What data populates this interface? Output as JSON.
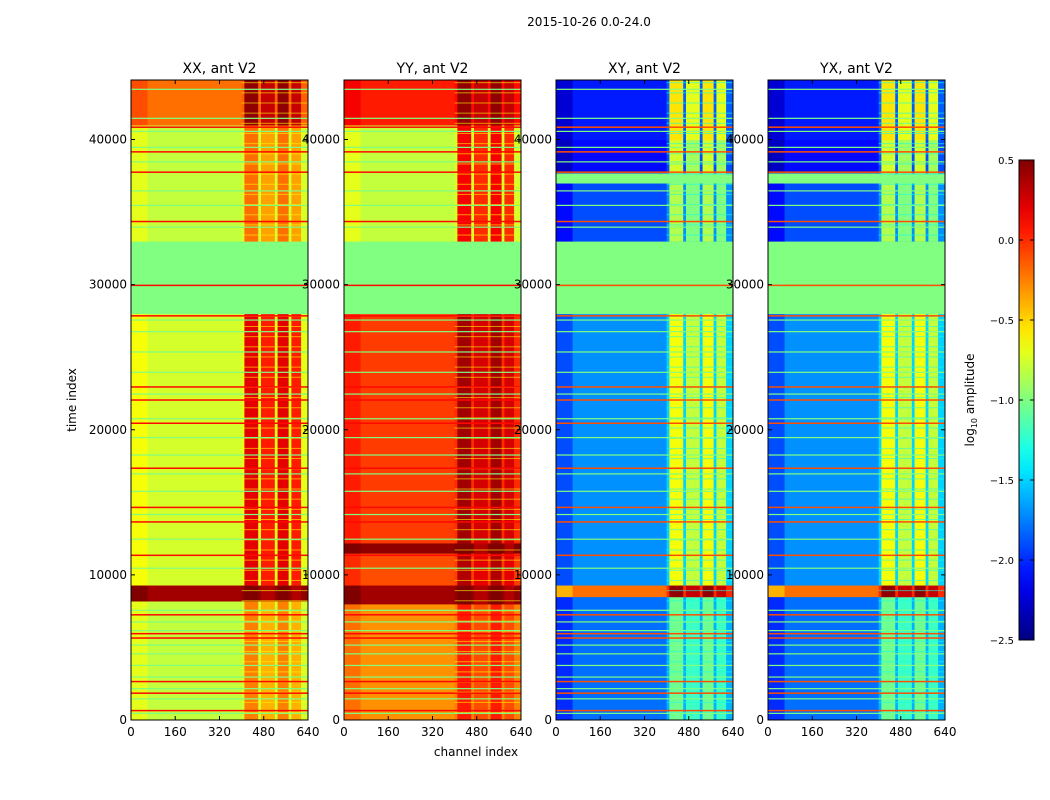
{
  "chart_data": {
    "type": "heatmap",
    "title": "2015-10-26 0.0-24.0",
    "xlabel": "channel index",
    "ylabel": "time index",
    "xlim": [
      0,
      640
    ],
    "ylim": [
      0,
      44100
    ],
    "xticks": [
      "0",
      "160",
      "320",
      "480",
      "640"
    ],
    "xtick_values": [
      0,
      160,
      320,
      480,
      640
    ],
    "yticks": [
      "0",
      "10000",
      "20000",
      "30000",
      "40000"
    ],
    "ytick_values": [
      0,
      10000,
      20000,
      30000,
      40000
    ],
    "colorbar": {
      "label_main": "log",
      "label_sub": "10",
      "label_rest": " amplitude",
      "range": [
        -2.5,
        0.5
      ],
      "colormap": "jet",
      "ticks": [
        "0.5",
        "0.0",
        "−0.5",
        "−1.0",
        "−1.5",
        "−2.0",
        "−2.5"
      ],
      "tick_values": [
        0.5,
        0.0,
        -0.5,
        -1.0,
        -1.5,
        -2.0,
        -2.5
      ]
    },
    "rfi_channel_ranges": [
      [
        410,
        460
      ],
      [
        470,
        520
      ],
      [
        530,
        570
      ],
      [
        580,
        615
      ]
    ],
    "flag_lines_green": [
      500,
      1500,
      2200,
      3000,
      3800,
      4600,
      5200,
      6200,
      6800,
      7600,
      10500,
      12500,
      14200,
      15800,
      17000,
      18300,
      19500,
      20800,
      22500,
      24000,
      25400,
      26800,
      27600,
      34000,
      35500,
      36500,
      38500,
      39500,
      40600,
      41500,
      43500
    ],
    "flag_lines_red": [
      700,
      1900,
      2700,
      5700,
      6000,
      7300,
      11400,
      13700,
      14700,
      17400,
      20500,
      22100,
      23000,
      27900,
      30000,
      34400,
      37800,
      39200,
      40900
    ],
    "panels": [
      {
        "title": "XX, ant V2",
        "bands": [
          [
            0,
            8200,
            -0.8,
            -0.3
          ],
          [
            8200,
            9300,
            0.4,
            0.45
          ],
          [
            9300,
            28000,
            -0.75,
            0.15
          ],
          [
            28000,
            33000,
            -1.0,
            -1.0
          ],
          [
            33000,
            41000,
            -0.8,
            -0.25
          ],
          [
            41000,
            44100,
            -0.2,
            0.4
          ]
        ]
      },
      {
        "title": "YY, ant V2",
        "bands": [
          [
            0,
            8000,
            -0.3,
            0.0
          ],
          [
            8000,
            9300,
            0.4,
            0.45
          ],
          [
            9300,
            11500,
            -0.1,
            0.3
          ],
          [
            11500,
            12200,
            0.45,
            0.45
          ],
          [
            12200,
            28000,
            -0.05,
            0.35
          ],
          [
            28000,
            33000,
            -1.0,
            -1.0
          ],
          [
            33000,
            41000,
            -0.8,
            0.1
          ],
          [
            41000,
            44100,
            0.05,
            0.4
          ]
        ]
      },
      {
        "title": "XY, ant V2",
        "bands": [
          [
            0,
            8500,
            -1.8,
            -1.1
          ],
          [
            8500,
            9300,
            -0.2,
            0.4
          ],
          [
            9300,
            28000,
            -1.7,
            -0.7
          ],
          [
            28000,
            33000,
            -1.0,
            -1.0
          ],
          [
            33000,
            37000,
            -1.9,
            -0.9
          ],
          [
            37000,
            37700,
            -1.0,
            -1.0
          ],
          [
            37700,
            40000,
            -2.1,
            -0.8
          ],
          [
            40000,
            44100,
            -2.05,
            -0.6
          ]
        ]
      },
      {
        "title": "YX, ant V2",
        "bands": [
          [
            0,
            8500,
            -1.8,
            -1.1
          ],
          [
            8500,
            9300,
            -0.2,
            0.4
          ],
          [
            9300,
            28000,
            -1.7,
            -0.7
          ],
          [
            28000,
            33000,
            -1.0,
            -1.0
          ],
          [
            33000,
            37000,
            -1.9,
            -0.9
          ],
          [
            37000,
            37700,
            -1.0,
            -1.0
          ],
          [
            37700,
            40000,
            -2.1,
            -0.8
          ],
          [
            40000,
            44100,
            -2.05,
            -0.6
          ]
        ]
      }
    ]
  }
}
